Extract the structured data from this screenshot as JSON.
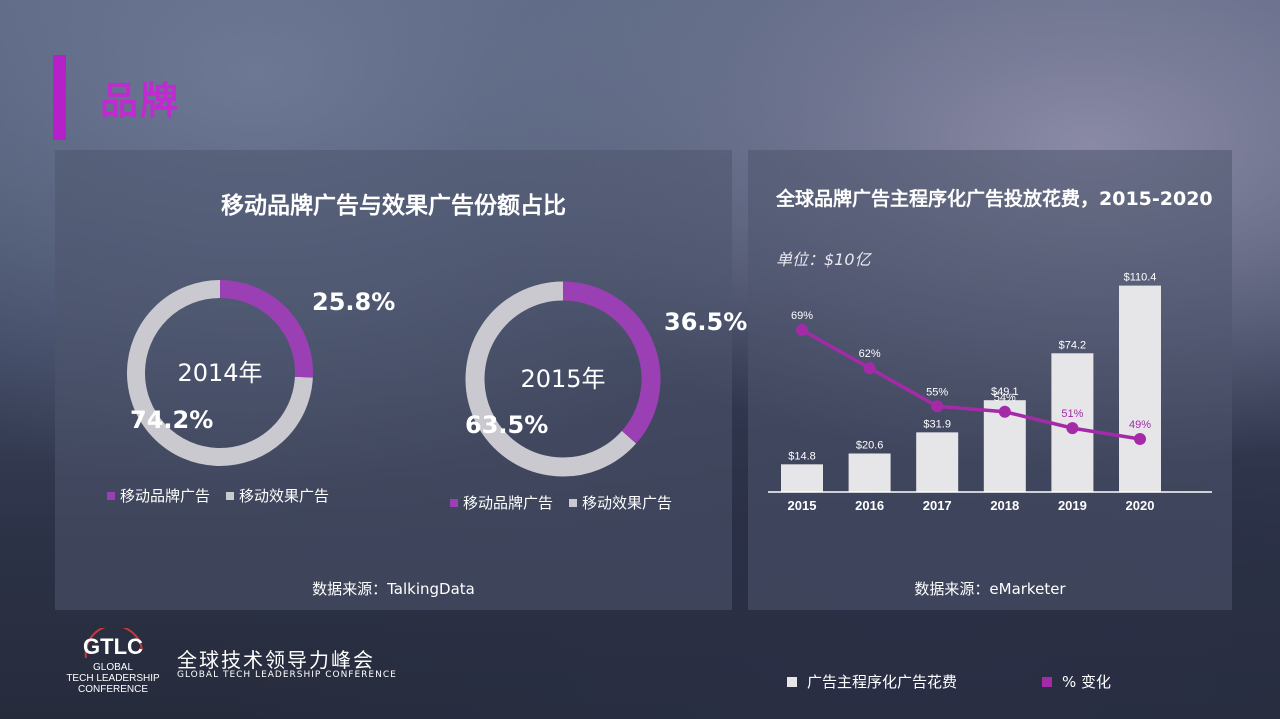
{
  "page": {
    "title": "品牌"
  },
  "left_panel": {
    "title": "移动品牌广告与效果广告份额占比",
    "source": "数据来源：TalkingData",
    "legend": {
      "brand": "移动品牌广告",
      "performance": "移动效果广告"
    }
  },
  "right_panel": {
    "title": "全球品牌广告主程序化广告投放花费，2015-2020",
    "unit": "单位：$10亿",
    "source": "数据来源：eMarketer",
    "legend": {
      "bars": "广告主程序化广告花费",
      "line": "% 变化"
    }
  },
  "footer": {
    "logo_text": "GTLC",
    "logo_sub": [
      "GLOBAL",
      "TECH LEADERSHIP",
      "CONFERENCE"
    ],
    "conference_cn": "全球技术领导力峰会",
    "conference_en": "GLOBAL TECH LEADERSHIP CONFERENCE"
  },
  "colors": {
    "accent": "#b620c8",
    "brand": "#9b3fb4",
    "performance": "#c9c9cf",
    "bar": "#e6e6e9",
    "line": "#a52aa8"
  },
  "chart_data": [
    {
      "type": "pie",
      "title": "2014年",
      "labels": [
        "移动品牌广告",
        "移动效果广告"
      ],
      "values": [
        25.8,
        74.2
      ],
      "value_labels": [
        "25.8%",
        "74.2%"
      ]
    },
    {
      "type": "pie",
      "title": "2015年",
      "labels": [
        "移动品牌广告",
        "移动效果广告"
      ],
      "values": [
        36.5,
        63.5
      ],
      "value_labels": [
        "36.5%",
        "63.5%"
      ]
    },
    {
      "type": "bar",
      "title": "全球品牌广告主程序化广告投放花费，2015-2020",
      "categories": [
        "2015",
        "2016",
        "2017",
        "2018",
        "2019",
        "2020"
      ],
      "series": [
        {
          "name": "广告主程序化广告花费",
          "values": [
            14.8,
            20.6,
            31.9,
            49.1,
            74.2,
            110.4
          ],
          "labels": [
            "$14.8",
            "$20.6",
            "$31.9",
            "$49.1",
            "$74.2",
            "$110.4"
          ]
        },
        {
          "name": "% 变化",
          "type": "line",
          "values": [
            69,
            62,
            55,
            54,
            51,
            49
          ],
          "labels": [
            "69%",
            "62%",
            "55%",
            "54%",
            "51%",
            "49%"
          ]
        }
      ],
      "ylim": [
        0,
        115
      ]
    }
  ]
}
